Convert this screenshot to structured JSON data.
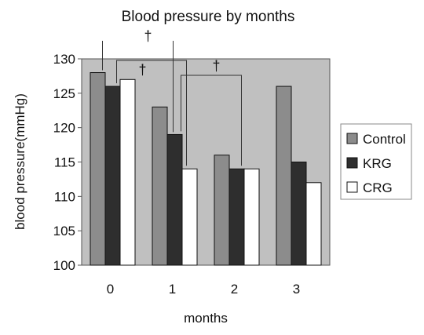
{
  "chart_data": {
    "type": "bar",
    "title": "Blood pressure by months",
    "xlabel": "months",
    "ylabel": "blood pressure(mmHg)",
    "ylim": [
      100,
      130
    ],
    "yticks": [
      100,
      105,
      110,
      115,
      120,
      125,
      130
    ],
    "categories": [
      "0",
      "1",
      "2",
      "3"
    ],
    "series": [
      {
        "name": "Control",
        "color": "#8c8c8c",
        "values": [
          128,
          123,
          116,
          126
        ]
      },
      {
        "name": "KRG",
        "color": "#2e2e2e",
        "values": [
          126,
          119,
          114,
          115
        ]
      },
      {
        "name": "CRG",
        "color": "#ffffff",
        "values": [
          127,
          114,
          114,
          112
        ]
      }
    ],
    "plot_background": "#c0c0c0",
    "grid": false,
    "legend_position": "right",
    "annotations": [
      "†",
      "†",
      "†"
    ]
  }
}
